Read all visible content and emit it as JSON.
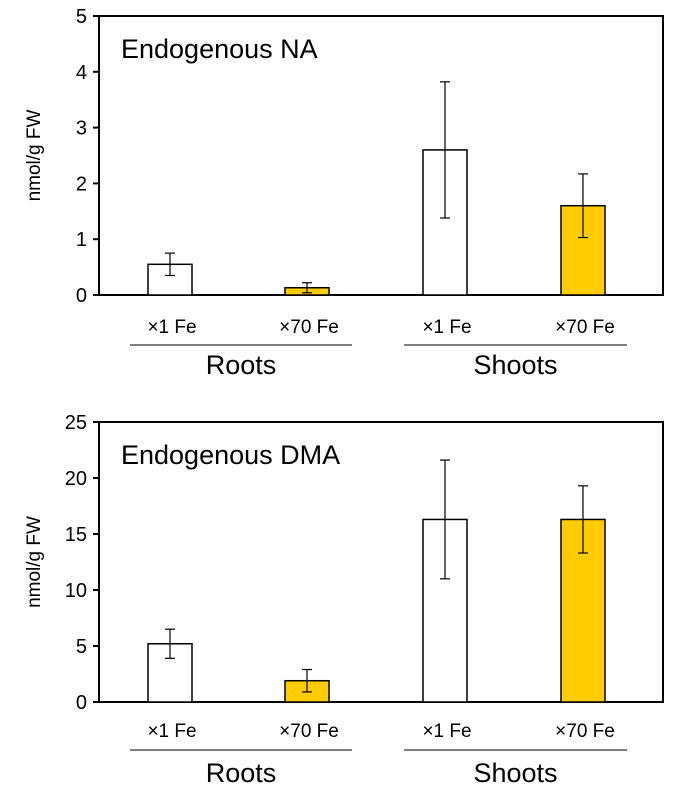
{
  "colors": {
    "white_bar": "#ffffff",
    "fe_bar": "#ffcc00",
    "axis": "#000000"
  },
  "chart_data": [
    {
      "type": "bar",
      "title": "Endogenous NA",
      "ylabel": "nmol/g FW",
      "ylim": [
        0,
        5
      ],
      "yticks": [
        "0",
        "1",
        "2",
        "3",
        "4",
        "5"
      ],
      "categories": [
        "×1 Fe",
        "×70 Fe",
        "×1 Fe",
        "×70 Fe"
      ],
      "groups": [
        "Roots",
        "Shoots"
      ],
      "values": [
        0.55,
        0.13,
        2.6,
        1.6
      ],
      "errors": [
        0.2,
        0.09,
        1.22,
        0.57
      ],
      "bar_colors": [
        "white",
        "fe",
        "white",
        "fe"
      ],
      "grid": false
    },
    {
      "type": "bar",
      "title": "Endogenous DMA",
      "ylabel": "nmol/g FW",
      "ylim": [
        0,
        25
      ],
      "yticks": [
        "0",
        "5",
        "10",
        "15",
        "20",
        "25"
      ],
      "categories": [
        "×1 Fe",
        "×70 Fe",
        "×1 Fe",
        "×70 Fe"
      ],
      "groups": [
        "Roots",
        "Shoots"
      ],
      "values": [
        5.2,
        1.9,
        16.3,
        16.3
      ],
      "errors": [
        1.3,
        1.0,
        5.3,
        3.0
      ],
      "bar_colors": [
        "white",
        "fe",
        "white",
        "fe"
      ],
      "grid": false
    }
  ]
}
